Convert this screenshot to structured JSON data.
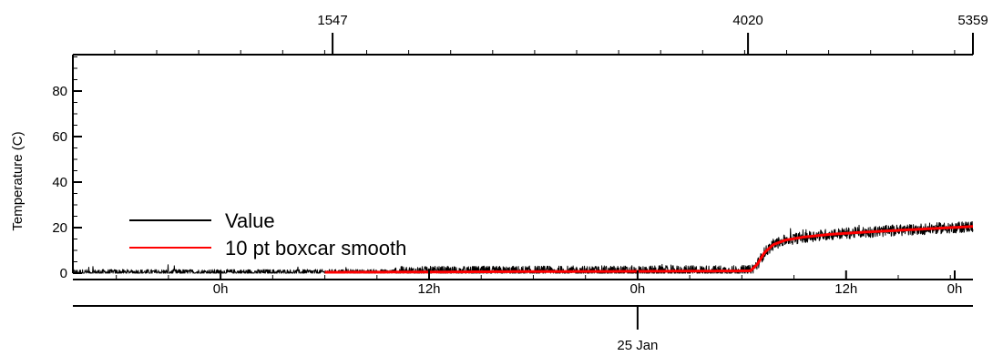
{
  "chart_data": {
    "type": "line",
    "title": "",
    "ylabel": "Temperature (C)",
    "ylim": [
      0,
      96
    ],
    "y_ticks": [
      "0",
      "20",
      "40",
      "60",
      "80"
    ],
    "top_axis": {
      "range": [
        1,
        5359
      ],
      "tick_labels": [
        "1547",
        "4020",
        "5359"
      ]
    },
    "bottom_axis": {
      "range_hours": [
        -8.5,
        43.3
      ],
      "tick_labels": [
        "0h",
        "12h",
        "0h",
        "12h",
        "0h"
      ],
      "date_label": "25 Jan"
    },
    "legend": {
      "position": "lower-left",
      "entries": [
        {
          "name": "Value",
          "color": "#000000"
        },
        {
          "name": "10 pt boxcar smooth",
          "color": "#ff0000"
        }
      ]
    },
    "series": [
      {
        "name": "Value",
        "color": "#000000",
        "noise_amplitude": 2.5,
        "x_hours": [
          -8.5,
          6,
          12,
          18,
          24,
          30.5,
          30.9,
          31.3,
          31.8,
          32.5,
          33.5,
          35,
          37,
          40,
          43.3
        ],
        "y": [
          0.4,
          0.4,
          0.5,
          0.7,
          0.8,
          1.0,
          4.0,
          9.0,
          12.5,
          14.5,
          15.8,
          17.0,
          18.0,
          19.2,
          20.5
        ]
      },
      {
        "name": "10 pt boxcar smooth",
        "color": "#ff0000",
        "x_hours": [
          6,
          12,
          18,
          24,
          30.5,
          30.9,
          31.3,
          31.8,
          32.5,
          33.5,
          35,
          37,
          40,
          43.3
        ],
        "y": [
          0.4,
          0.5,
          0.7,
          0.8,
          1.0,
          4.0,
          9.0,
          12.5,
          14.5,
          15.8,
          17.0,
          18.0,
          19.2,
          20.5
        ]
      }
    ]
  }
}
